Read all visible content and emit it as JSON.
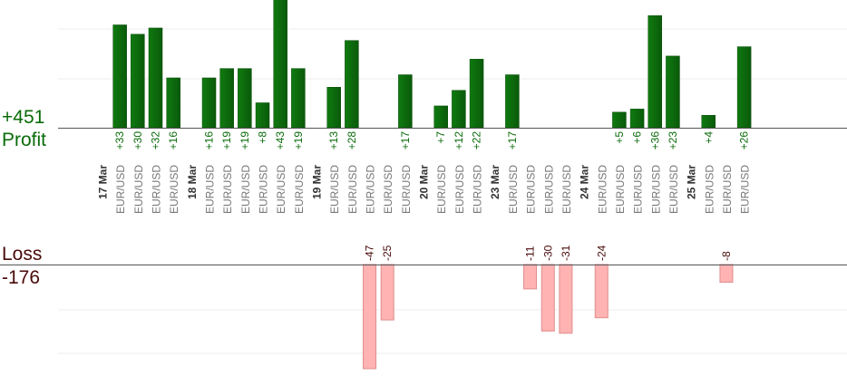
{
  "summary": {
    "profit_total": "+451",
    "profit_label": "Profit",
    "loss_label": "Loss",
    "loss_total": "-176"
  },
  "colors": {
    "profit_bar": "#0a5a0a",
    "profit_text": "#0a6b0a",
    "loss_bar": "#ffb3b3",
    "loss_bar_border": "#e08c8c",
    "loss_text": "#4a0a0a",
    "axis_text": "#777777",
    "date_text": "#333333",
    "grid": "#eeeeee"
  },
  "chart_data": {
    "type": "bar",
    "profit_axis": {
      "ylim": [
        0,
        55
      ]
    },
    "loss_axis": {
      "ylim": [
        -47,
        0
      ]
    },
    "grid": true,
    "categories": [
      {
        "date": "17 Mar"
      },
      {
        "symbol": "EUR/USD",
        "profit": 33
      },
      {
        "symbol": "EUR/USD",
        "profit": 30
      },
      {
        "symbol": "EUR/USD",
        "profit": 32
      },
      {
        "symbol": "EUR/USD",
        "profit": 16
      },
      {
        "date": "18 Mar"
      },
      {
        "symbol": "EUR/USD",
        "profit": 16
      },
      {
        "symbol": "EUR/USD",
        "profit": 19
      },
      {
        "symbol": "EUR/USD",
        "profit": 19
      },
      {
        "symbol": "EUR/USD",
        "profit": 8
      },
      {
        "symbol": "EUR/USD",
        "profit": 43
      },
      {
        "symbol": "EUR/USD",
        "profit": 19
      },
      {
        "date": "19 Mar"
      },
      {
        "symbol": "EUR/USD",
        "profit": 13
      },
      {
        "symbol": "EUR/USD",
        "profit": 28
      },
      {
        "symbol": "EUR/USD",
        "loss": -47
      },
      {
        "symbol": "EUR/USD",
        "loss": -25
      },
      {
        "symbol": "EUR/USD",
        "profit": 17
      },
      {
        "date": "20 Mar"
      },
      {
        "symbol": "EUR/USD",
        "profit": 7
      },
      {
        "symbol": "EUR/USD",
        "profit": 12
      },
      {
        "symbol": "EUR/USD",
        "profit": 22
      },
      {
        "date": "23 Mar"
      },
      {
        "symbol": "EUR/USD",
        "profit": 17
      },
      {
        "symbol": "EUR/USD",
        "loss": -11
      },
      {
        "symbol": "EUR/USD",
        "loss": -30
      },
      {
        "symbol": "EUR/USD",
        "loss": -31
      },
      {
        "date": "24 Mar"
      },
      {
        "symbol": "EUR/USD",
        "loss": -24
      },
      {
        "symbol": "EUR/USD",
        "profit": 5
      },
      {
        "symbol": "EUR/USD",
        "profit": 6
      },
      {
        "symbol": "EUR/USD",
        "profit": 36
      },
      {
        "symbol": "EUR/USD",
        "profit": 23
      },
      {
        "date": "25 Mar"
      },
      {
        "symbol": "EUR/USD",
        "profit": 4
      },
      {
        "symbol": "EUR/USD",
        "loss": -8
      },
      {
        "symbol": "EUR/USD",
        "profit": 26
      }
    ]
  }
}
